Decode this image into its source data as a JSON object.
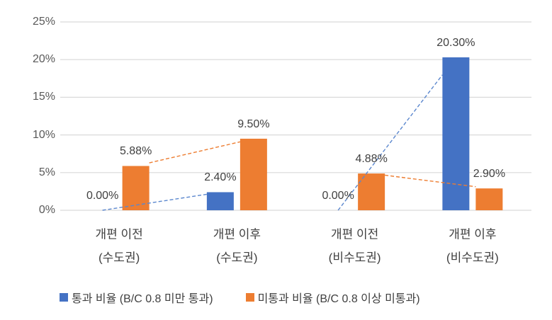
{
  "chart_data": {
    "type": "bar",
    "title": "",
    "categories": [
      {
        "line1": "개편 이전",
        "line2": "(수도권)"
      },
      {
        "line1": "개편 이후",
        "line2": "(수도권)"
      },
      {
        "line1": "개편 이전",
        "line2": "(비수도권)"
      },
      {
        "line1": "개편 이후",
        "line2": "(비수도권)"
      }
    ],
    "series": [
      {
        "name": "통과 비율 (B/C 0.8 미만 통과)",
        "color": "#4472C4",
        "dash_color": "#5b87ce",
        "values": [
          0.0,
          2.4,
          0.0,
          20.3
        ],
        "labels": [
          "0.00%",
          "2.40%",
          "0.00%",
          "20.30%"
        ]
      },
      {
        "name": "미통과 비율 (B/C 0.8 이상 미통과)",
        "color": "#ED7D31",
        "dash_color": "#ED7D31",
        "values": [
          5.88,
          9.5,
          4.88,
          2.9
        ],
        "labels": [
          "5.88%",
          "9.50%",
          "4.88%",
          "2.90%"
        ]
      }
    ],
    "connector_pairs": [
      [
        0,
        1
      ],
      [
        2,
        3
      ]
    ],
    "y_axis": {
      "tick_labels": [
        "0%",
        "5%",
        "10%",
        "15%",
        "20%",
        "25%"
      ],
      "tick_values": [
        0,
        5,
        10,
        15,
        20,
        25
      ],
      "min": 0,
      "max": 25
    },
    "grid": true,
    "legend_position": "bottom",
    "colors": {
      "gridline": "#d9d9d9",
      "axis_text": "#595959",
      "label_text": "#404040"
    }
  }
}
